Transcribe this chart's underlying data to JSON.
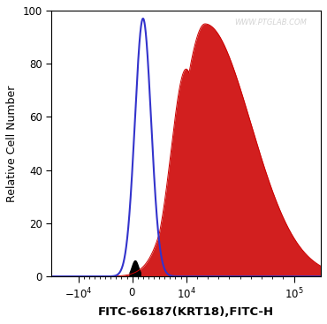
{
  "title": "",
  "xlabel": "FITC-66187(KRT18),FITC-H",
  "ylabel": "Relative Cell Number",
  "watermark": "WWW.PTGLAB.COM",
  "ylim": [
    0,
    100
  ],
  "yticks": [
    0,
    20,
    40,
    60,
    80,
    100
  ],
  "blue_color": "#3333cc",
  "red_color": "#cc0000",
  "background_color": "#ffffff",
  "fig_width": 3.7,
  "fig_height": 3.67,
  "dpi": 100
}
